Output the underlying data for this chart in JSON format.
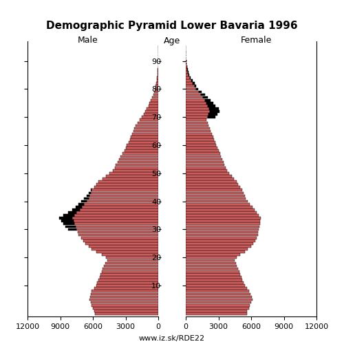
{
  "title": "Demographic Pyramid Lower Bavaria 1996",
  "xlabel_left": "Male",
  "xlabel_right": "Female",
  "ylabel": "Age",
  "xlim": 12000,
  "bar_color": "#CD5C5C",
  "bar_color_light": "#D9867E",
  "bar_edge_color": "#000000",
  "background_color": "#ffffff",
  "watermark": "www.iz.sk/RDE22",
  "ages": [
    0,
    1,
    2,
    3,
    4,
    5,
    6,
    7,
    8,
    9,
    10,
    11,
    12,
    13,
    14,
    15,
    16,
    17,
    18,
    19,
    20,
    21,
    22,
    23,
    24,
    25,
    26,
    27,
    28,
    29,
    30,
    31,
    32,
    33,
    34,
    35,
    36,
    37,
    38,
    39,
    40,
    41,
    42,
    43,
    44,
    45,
    46,
    47,
    48,
    49,
    50,
    51,
    52,
    53,
    54,
    55,
    56,
    57,
    58,
    59,
    60,
    61,
    62,
    63,
    64,
    65,
    66,
    67,
    68,
    69,
    70,
    71,
    72,
    73,
    74,
    75,
    76,
    77,
    78,
    79,
    80,
    81,
    82,
    83,
    84,
    85,
    86,
    87,
    88,
    89,
    90,
    91,
    92,
    93,
    94,
    95
  ],
  "male": [
    5800,
    5850,
    6000,
    6100,
    6200,
    6300,
    6250,
    6200,
    6100,
    5900,
    5700,
    5600,
    5500,
    5400,
    5300,
    5200,
    5100,
    5000,
    4850,
    4700,
    4800,
    5200,
    5700,
    6100,
    6400,
    6700,
    6900,
    7100,
    7300,
    7400,
    7500,
    7600,
    7700,
    7800,
    7900,
    7700,
    7500,
    7200,
    7000,
    6800,
    6600,
    6400,
    6300,
    6200,
    6100,
    5900,
    5700,
    5500,
    5100,
    4800,
    4500,
    4200,
    4000,
    3900,
    3750,
    3600,
    3450,
    3300,
    3100,
    2950,
    2900,
    2700,
    2600,
    2500,
    2400,
    2300,
    2200,
    2100,
    1900,
    1700,
    1500,
    1350,
    1200,
    1050,
    900,
    800,
    680,
    570,
    470,
    390,
    300,
    240,
    180,
    140,
    100,
    75,
    55,
    38,
    26,
    17,
    11,
    7,
    4,
    3,
    2,
    1
  ],
  "male_black": [
    0,
    0,
    0,
    0,
    0,
    0,
    0,
    0,
    0,
    0,
    0,
    0,
    0,
    0,
    0,
    0,
    0,
    0,
    0,
    0,
    0,
    0,
    0,
    0,
    0,
    0,
    0,
    0,
    0,
    0,
    800,
    900,
    1000,
    1100,
    1200,
    1000,
    800,
    700,
    600,
    500,
    500,
    400,
    300,
    200,
    100,
    0,
    0,
    0,
    0,
    0,
    0,
    0,
    0,
    0,
    0,
    0,
    0,
    0,
    0,
    0,
    0,
    0,
    0,
    0,
    0,
    0,
    0,
    0,
    0,
    0,
    0,
    0,
    0,
    0,
    0,
    0,
    0,
    0,
    0,
    0,
    0,
    0,
    0,
    0,
    0,
    0,
    0,
    0,
    0,
    0,
    0,
    0,
    0,
    0,
    0,
    0
  ],
  "female": [
    5600,
    5650,
    5800,
    5900,
    6000,
    6100,
    6050,
    5950,
    5800,
    5600,
    5400,
    5300,
    5200,
    5100,
    5000,
    4900,
    4800,
    4700,
    4600,
    4500,
    4700,
    5000,
    5400,
    5700,
    6000,
    6200,
    6400,
    6500,
    6600,
    6600,
    6700,
    6750,
    6800,
    6850,
    6900,
    6700,
    6500,
    6300,
    6100,
    5900,
    5700,
    5500,
    5400,
    5300,
    5200,
    5000,
    4800,
    4700,
    4400,
    4200,
    4000,
    3800,
    3650,
    3550,
    3450,
    3350,
    3250,
    3150,
    3000,
    2900,
    2800,
    2700,
    2600,
    2500,
    2400,
    2300,
    2200,
    2100,
    2000,
    1900,
    2000,
    2100,
    2200,
    2150,
    2000,
    1900,
    1750,
    1600,
    1400,
    1200,
    950,
    800,
    650,
    500,
    380,
    280,
    200,
    140,
    95,
    65,
    42,
    26,
    16,
    10,
    6,
    3
  ],
  "female_black": [
    0,
    0,
    0,
    0,
    0,
    0,
    0,
    0,
    0,
    0,
    0,
    0,
    0,
    0,
    0,
    0,
    0,
    0,
    0,
    0,
    0,
    0,
    0,
    0,
    0,
    0,
    0,
    0,
    0,
    0,
    0,
    0,
    0,
    0,
    0,
    0,
    0,
    0,
    0,
    0,
    0,
    0,
    0,
    0,
    0,
    0,
    0,
    0,
    0,
    0,
    0,
    0,
    0,
    0,
    0,
    0,
    0,
    0,
    0,
    0,
    0,
    0,
    0,
    0,
    0,
    0,
    0,
    0,
    0,
    0,
    700,
    800,
    900,
    850,
    700,
    600,
    500,
    450,
    350,
    250,
    200,
    170,
    140,
    110,
    80,
    55,
    40,
    28,
    18,
    12,
    7,
    4,
    2,
    1,
    0,
    0
  ],
  "yticks": [
    10,
    20,
    30,
    40,
    50,
    60,
    70,
    80,
    90
  ],
  "xticks_left": [
    -12000,
    -9000,
    -6000,
    -3000,
    0
  ],
  "xticks_right": [
    0,
    3000,
    6000,
    9000,
    12000
  ],
  "xtick_labels_left": [
    "12000",
    "9000",
    "6000",
    "3000",
    "0"
  ],
  "xtick_labels_right": [
    "0",
    "3000",
    "6000",
    "9000",
    "12000"
  ]
}
